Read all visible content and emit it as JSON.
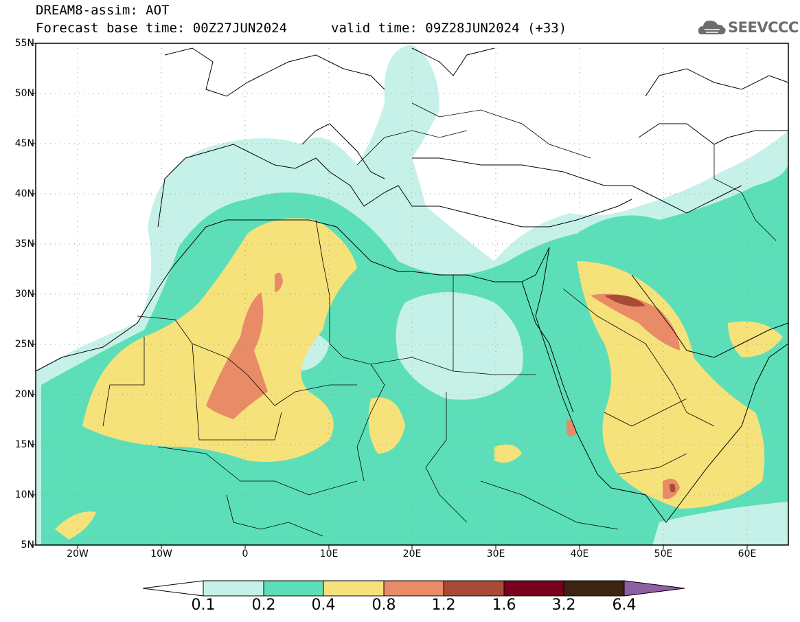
{
  "header": {
    "title_line1": "DREAM8-assim: AOT",
    "title_line2": "Forecast base time: 00Z27JUN2024",
    "valid_time": "valid time: 09Z28JUN2024 (+33)",
    "logo_text": "SEEVCCC"
  },
  "map": {
    "lat_labels": [
      "55N",
      "50N",
      "45N",
      "40N",
      "35N",
      "30N",
      "25N",
      "20N",
      "15N",
      "10N",
      "5N"
    ],
    "lon_labels": [
      "20W",
      "10W",
      "0",
      "10E",
      "20E",
      "30E",
      "40E",
      "50E",
      "60E"
    ],
    "lon_range": [
      -25,
      65
    ],
    "lat_range": [
      5,
      55
    ]
  },
  "colorbar": {
    "labels": [
      "0.1",
      "0.2",
      "0.4",
      "0.8",
      "1.2",
      "1.6",
      "3.2",
      "6.4"
    ],
    "colors": [
      "#ffffff",
      "#c6f1e8",
      "#5cdfb8",
      "#f6e27a",
      "#e98b66",
      "#a94a36",
      "#7a0020",
      "#3d2412",
      "#8d5fa3"
    ]
  }
}
